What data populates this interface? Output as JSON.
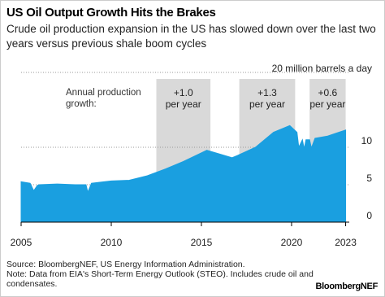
{
  "title": "US Oil Output Growth Hits the Brakes",
  "subtitle": "Crude oil production expansion in the US has slowed down over the last two years versus previous shale boom cycles",
  "source": "Source: BloombergNEF, US Energy Information Administration.",
  "note": "Note: Data from EIA's Short-Term Energy Outlook (STEO). Includes crude oil and condensates.",
  "brand": "BloombergNEF",
  "chart_data": {
    "type": "area",
    "annotation": "Annual production growth:",
    "shaded_periods": [
      {
        "start": 2012.5,
        "end": 2015.5,
        "growth": "+1.0",
        "unit": "per year"
      },
      {
        "start": 2017.1,
        "end": 2020.2,
        "growth": "+1.3",
        "unit": "per year"
      },
      {
        "start": 2021.0,
        "end": 2023.0,
        "growth": "+0.6",
        "unit": "per year"
      }
    ],
    "x": [
      2005.0,
      2005.5,
      2005.7,
      2005.9,
      2006.0,
      2007.0,
      2008.0,
      2008.6,
      2008.7,
      2008.9,
      2010.0,
      2011.0,
      2012.0,
      2013.0,
      2014.0,
      2015.3,
      2016.0,
      2016.7,
      2017.0,
      2018.0,
      2019.0,
      2019.9,
      2020.3,
      2020.4,
      2020.6,
      2020.7,
      2020.8,
      2021.0,
      2021.1,
      2021.3,
      2022.0,
      2022.5,
      2023.0
    ],
    "values": [
      5.4,
      5.2,
      4.2,
      4.9,
      5.0,
      5.1,
      5.0,
      5.0,
      4.0,
      5.2,
      5.5,
      5.6,
      6.2,
      7.1,
      8.1,
      9.6,
      9.1,
      8.6,
      8.9,
      10.0,
      12.0,
      12.9,
      12.0,
      10.0,
      11.0,
      9.8,
      11.0,
      11.0,
      9.9,
      11.2,
      11.5,
      11.9,
      12.3
    ],
    "color": "#1a9fe0",
    "xlim": [
      2005,
      2023.2
    ],
    "xticks": [
      2005,
      2010,
      2015,
      2020,
      2023
    ],
    "ylim": [
      0,
      20
    ],
    "yticks": [
      0,
      5,
      10,
      {
        "value": 20,
        "label": "20 million barrels a day"
      }
    ],
    "grid": true
  }
}
